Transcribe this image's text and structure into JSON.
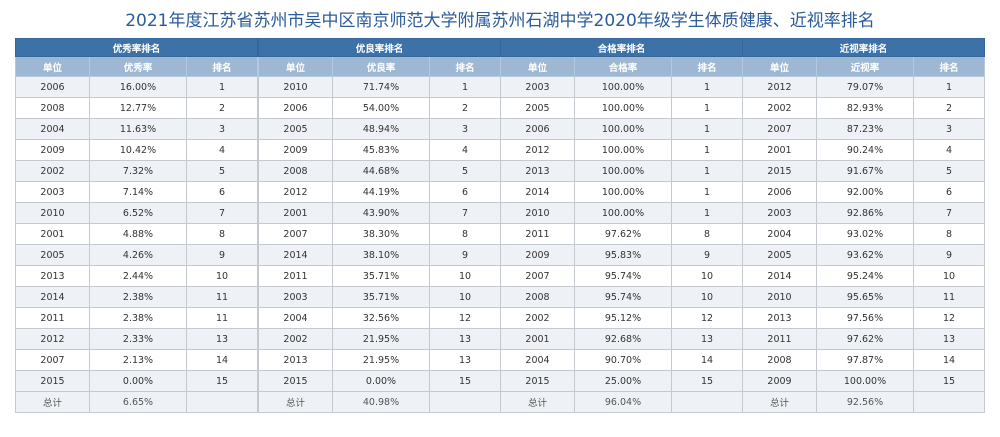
{
  "title": "2021年度江苏省苏州市吴中区南京师范大学附属苏州石湖中学2020年级学生体质健康、近视率排名",
  "columns": [
    "单位",
    "",
    "排名"
  ],
  "tables": [
    {
      "heading": "优秀率排名",
      "value_header": "优秀率",
      "rows": [
        [
          "2006",
          "16.00%",
          "1"
        ],
        [
          "2008",
          "12.77%",
          "2"
        ],
        [
          "2004",
          "11.63%",
          "3"
        ],
        [
          "2009",
          "10.42%",
          "4"
        ],
        [
          "2002",
          "7.32%",
          "5"
        ],
        [
          "2003",
          "7.14%",
          "6"
        ],
        [
          "2010",
          "6.52%",
          "7"
        ],
        [
          "2001",
          "4.88%",
          "8"
        ],
        [
          "2005",
          "4.26%",
          "9"
        ],
        [
          "2013",
          "2.44%",
          "10"
        ],
        [
          "2014",
          "2.38%",
          "11"
        ],
        [
          "2011",
          "2.38%",
          "11"
        ],
        [
          "2012",
          "2.33%",
          "13"
        ],
        [
          "2007",
          "2.13%",
          "14"
        ],
        [
          "2015",
          "0.00%",
          "15"
        ]
      ],
      "total_label": "总计",
      "total_value": "6.65%"
    },
    {
      "heading": "优良率排名",
      "value_header": "优良率",
      "rows": [
        [
          "2010",
          "71.74%",
          "1"
        ],
        [
          "2006",
          "54.00%",
          "2"
        ],
        [
          "2005",
          "48.94%",
          "3"
        ],
        [
          "2009",
          "45.83%",
          "4"
        ],
        [
          "2008",
          "44.68%",
          "5"
        ],
        [
          "2012",
          "44.19%",
          "6"
        ],
        [
          "2001",
          "43.90%",
          "7"
        ],
        [
          "2007",
          "38.30%",
          "8"
        ],
        [
          "2014",
          "38.10%",
          "9"
        ],
        [
          "2011",
          "35.71%",
          "10"
        ],
        [
          "2003",
          "35.71%",
          "10"
        ],
        [
          "2004",
          "32.56%",
          "12"
        ],
        [
          "2002",
          "21.95%",
          "13"
        ],
        [
          "2013",
          "21.95%",
          "13"
        ],
        [
          "2015",
          "0.00%",
          "15"
        ]
      ],
      "total_label": "总计",
      "total_value": "40.98%"
    },
    {
      "heading": "合格率排名",
      "value_header": "合格率",
      "rows": [
        [
          "2003",
          "100.00%",
          "1"
        ],
        [
          "2005",
          "100.00%",
          "1"
        ],
        [
          "2006",
          "100.00%",
          "1"
        ],
        [
          "2012",
          "100.00%",
          "1"
        ],
        [
          "2013",
          "100.00%",
          "1"
        ],
        [
          "2014",
          "100.00%",
          "1"
        ],
        [
          "2010",
          "100.00%",
          "1"
        ],
        [
          "2011",
          "97.62%",
          "8"
        ],
        [
          "2009",
          "95.83%",
          "9"
        ],
        [
          "2007",
          "95.74%",
          "10"
        ],
        [
          "2008",
          "95.74%",
          "10"
        ],
        [
          "2002",
          "95.12%",
          "12"
        ],
        [
          "2001",
          "92.68%",
          "13"
        ],
        [
          "2004",
          "90.70%",
          "14"
        ],
        [
          "2015",
          "25.00%",
          "15"
        ]
      ],
      "total_label": "总计",
      "total_value": "96.04%"
    },
    {
      "heading": "近视率排名",
      "value_header": "近视率",
      "rows": [
        [
          "2012",
          "79.07%",
          "1"
        ],
        [
          "2002",
          "82.93%",
          "2"
        ],
        [
          "2007",
          "87.23%",
          "3"
        ],
        [
          "2001",
          "90.24%",
          "4"
        ],
        [
          "2015",
          "91.67%",
          "5"
        ],
        [
          "2006",
          "92.00%",
          "6"
        ],
        [
          "2003",
          "92.86%",
          "7"
        ],
        [
          "2004",
          "93.02%",
          "8"
        ],
        [
          "2005",
          "93.62%",
          "9"
        ],
        [
          "2014",
          "95.24%",
          "10"
        ],
        [
          "2010",
          "95.65%",
          "11"
        ],
        [
          "2013",
          "97.56%",
          "12"
        ],
        [
          "2011",
          "97.62%",
          "13"
        ],
        [
          "2008",
          "97.87%",
          "14"
        ],
        [
          "2009",
          "100.00%",
          "15"
        ]
      ],
      "total_label": "总计",
      "total_value": "92.56%"
    }
  ],
  "colors": {
    "title": "#2b5b9a",
    "header": "#3d72a8",
    "subheader": "#9eb8d3",
    "stripe": "#eef2f7"
  }
}
